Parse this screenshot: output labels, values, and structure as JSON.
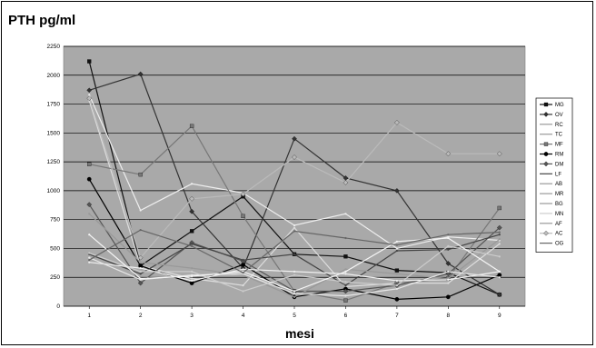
{
  "chart_data": {
    "type": "line",
    "title": "PTH pg/ml",
    "xlabel": "mesi",
    "ylabel": "",
    "x": [
      1,
      2,
      3,
      4,
      5,
      6,
      7,
      8,
      9
    ],
    "xlim": [
      0.5,
      9.5
    ],
    "ylim": [
      0,
      2250
    ],
    "yticks": [
      0,
      250,
      500,
      750,
      1000,
      1250,
      1500,
      1750,
      2000,
      2250
    ],
    "grid": true,
    "plot_background": "#a9a9a9",
    "legend_position": "right",
    "series": [
      {
        "name": "MG",
        "color": "#111111",
        "marker": "square",
        "values": [
          2120,
          350,
          650,
          950,
          450,
          430,
          310,
          290,
          100
        ]
      },
      {
        "name": "OV",
        "color": "#333333",
        "marker": "diamond",
        "values": [
          1870,
          2010,
          820,
          330,
          1450,
          1110,
          1000,
          370,
          100
        ]
      },
      {
        "name": "RC",
        "color": "#dddddd",
        "marker": "none",
        "values": [
          1780,
          350,
          240,
          180,
          680,
          170,
          200,
          200,
          540
        ]
      },
      {
        "name": "TC",
        "color": "#eeeeee",
        "marker": "none",
        "values": [
          1830,
          830,
          1060,
          980,
          700,
          800,
          500,
          600,
          570
        ]
      },
      {
        "name": "MF",
        "color": "#777777",
        "marker": "square",
        "values": [
          1230,
          1140,
          1560,
          780,
          130,
          50,
          200,
          240,
          850
        ]
      },
      {
        "name": "RM",
        "color": "#000000",
        "marker": "circle",
        "values": [
          1100,
          350,
          200,
          360,
          80,
          150,
          60,
          80,
          270
        ]
      },
      {
        "name": "DM",
        "color": "#555555",
        "marker": "diamond",
        "values": [
          880,
          200,
          550,
          390,
          130,
          130,
          180,
          280,
          680
        ]
      },
      {
        "name": "LF",
        "color": "#444444",
        "marker": "none",
        "values": [
          450,
          280,
          540,
          400,
          450,
          180,
          480,
          490,
          620
        ]
      },
      {
        "name": "AB",
        "color": "#999999",
        "marker": "none",
        "values": [
          800,
          380,
          330,
          270,
          80,
          320,
          280,
          240,
          580
        ]
      },
      {
        "name": "MR",
        "color": "#f0f0f0",
        "marker": "none",
        "values": [
          380,
          330,
          220,
          320,
          300,
          280,
          220,
          230,
          300
        ]
      },
      {
        "name": "BG",
        "color": "#e6e6e6",
        "marker": "none",
        "values": [
          420,
          230,
          270,
          280,
          110,
          90,
          150,
          300,
          250
        ]
      },
      {
        "name": "MN",
        "color": "#cccccc",
        "marker": "none",
        "values": [
          460,
          300,
          300,
          130,
          270,
          210,
          180,
          520,
          430
        ]
      },
      {
        "name": "AF",
        "color": "#f5f5f5",
        "marker": "none",
        "values": [
          620,
          240,
          260,
          300,
          130,
          300,
          560,
          590,
          300
        ]
      },
      {
        "name": "AC",
        "color": "#bbbbbb",
        "marker": "diamond",
        "values": [
          1800,
          420,
          930,
          970,
          1290,
          1070,
          1590,
          1320,
          1320
        ]
      },
      {
        "name": "OG",
        "color": "#666666",
        "marker": "none",
        "values": [
          400,
          660,
          520,
          290,
          650,
          590,
          530,
          620,
          640
        ]
      }
    ]
  }
}
